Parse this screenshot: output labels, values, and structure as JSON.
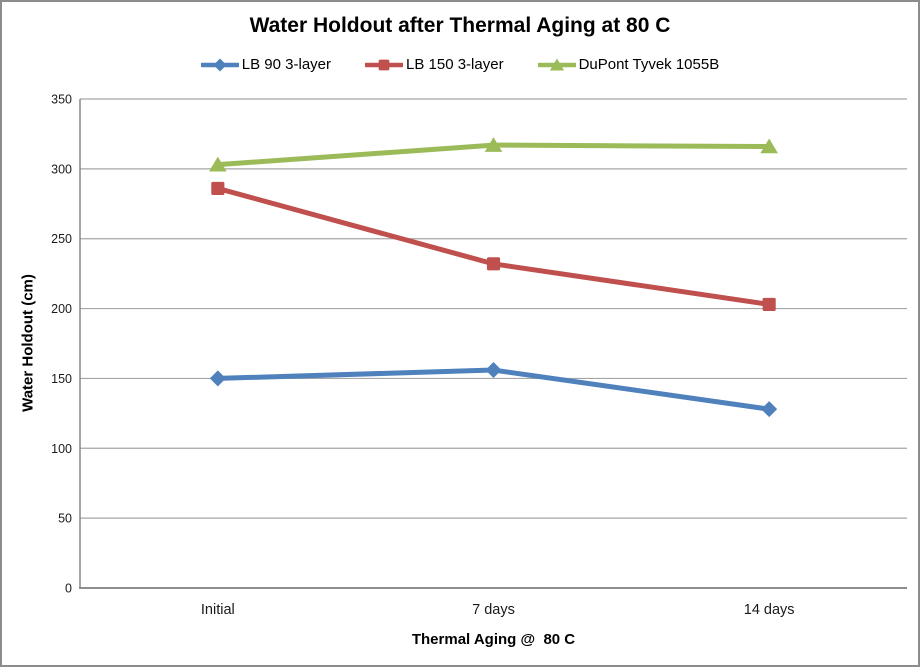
{
  "chart_data": {
    "type": "line",
    "title": "Water Holdout after Thermal Aging at 80 C",
    "xlabel": "Thermal Aging @  80 C",
    "ylabel": "Water Holdout (cm)",
    "categories": [
      "Initial",
      "7 days",
      "14 days"
    ],
    "series": [
      {
        "name": "LB 90 3-layer",
        "marker": "diamond",
        "color": "#4F81BD",
        "values": [
          150,
          156,
          128
        ]
      },
      {
        "name": "LB 150 3-layer",
        "marker": "square",
        "color": "#C0504D",
        "values": [
          286,
          232,
          203
        ]
      },
      {
        "name": "DuPont Tyvek 1055B",
        "marker": "triangle",
        "color": "#9BBB59",
        "values": [
          303,
          317,
          316
        ]
      }
    ],
    "ylim": [
      0,
      350
    ],
    "yticks": [
      0,
      50,
      100,
      150,
      200,
      250,
      300,
      350
    ],
    "grid": true,
    "legend_position": "top"
  },
  "colors": {
    "gridline": "#A6A6A6",
    "axis_line": "#808080",
    "frame_border": "#8C8C8C",
    "text": "#1A1A1A",
    "background": "#FFFFFF"
  }
}
